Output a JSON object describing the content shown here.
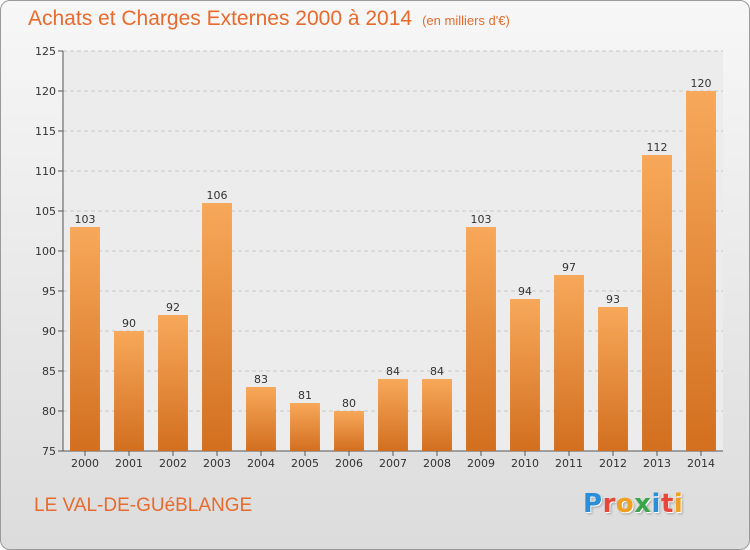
{
  "header": {
    "title": "Achats et Charges Externes 2000 à 2014",
    "unit": "(en milliers d'€)"
  },
  "footer": {
    "commune": "LE VAL-DE-GUéBLANGE",
    "brand": "Proxiti",
    "brand_colors": [
      "#2a8fd8",
      "#e8463a",
      "#f0a020",
      "#3aa64a",
      "#2a8fd8",
      "#e8463a",
      "#f0a020"
    ]
  },
  "colors": {
    "accent": "#e86a2c",
    "bar_top": "#f8a85a",
    "bar_bottom": "#d26f1f"
  },
  "chart_data": {
    "type": "bar",
    "categories": [
      "2000",
      "2001",
      "2002",
      "2003",
      "2004",
      "2005",
      "2006",
      "2007",
      "2008",
      "2009",
      "2010",
      "2011",
      "2012",
      "2013",
      "2014"
    ],
    "values": [
      103,
      90,
      92,
      106,
      83,
      81,
      80,
      84,
      84,
      103,
      94,
      97,
      93,
      112,
      120
    ],
    "xlabel": "",
    "ylabel": "",
    "ylim": [
      75,
      125
    ],
    "yticks": [
      75,
      80,
      85,
      90,
      95,
      100,
      105,
      110,
      115,
      120,
      125
    ],
    "grid": true,
    "data_labels": true
  }
}
